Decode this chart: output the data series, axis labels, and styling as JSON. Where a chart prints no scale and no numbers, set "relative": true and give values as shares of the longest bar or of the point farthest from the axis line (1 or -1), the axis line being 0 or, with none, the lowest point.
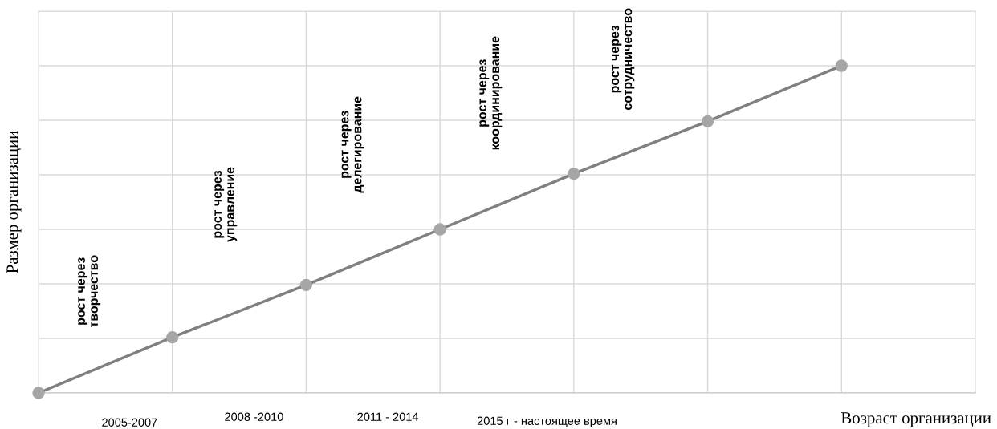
{
  "chart_data": {
    "type": "line",
    "relative": true,
    "categories": [
      null,
      null,
      null,
      null,
      null,
      null,
      null
    ],
    "series": [
      {
        "color": "#808080",
        "values": [
          0,
          0.17,
          0.33,
          0.5,
          0.67,
          0.83,
          1
        ]
      }
    ],
    "marker": "circle",
    "line_style": "solid",
    "grid": true,
    "xlabel": "Возраст организации",
    "ylabel": "Размер организации",
    "annotations": [
      "рост через\nтворчество",
      "рост через\nуправление",
      "рост через\nделегирование",
      "рост через\nкоординирование",
      "рост через\nсотрудничество",
      "2005-2007",
      "2008 -2010",
      "2011 - 2014",
      "2015 г - настоящее время"
    ]
  }
}
